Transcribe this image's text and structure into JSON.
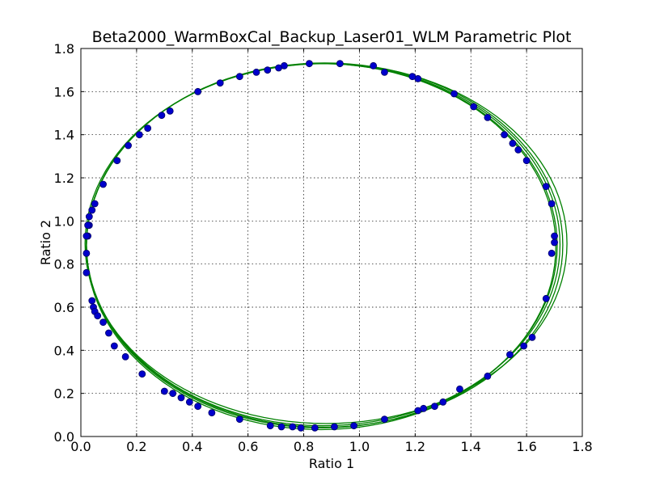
{
  "chart_data": {
    "type": "line",
    "title": "Beta2000_WarmBoxCal_Backup_Laser01_WLM Parametric Plot",
    "xlabel": "Ratio 1",
    "ylabel": "Ratio 2",
    "xlim": [
      0.0,
      1.8
    ],
    "ylim": [
      0.0,
      1.8
    ],
    "xticks": [
      "0.0",
      "0.2",
      "0.4",
      "0.6",
      "0.8",
      "1.0",
      "1.2",
      "1.4",
      "1.6",
      "1.8"
    ],
    "yticks": [
      "0.0",
      "0.2",
      "0.4",
      "0.6",
      "0.8",
      "1.0",
      "1.2",
      "1.4",
      "1.6",
      "1.8"
    ],
    "grid": true,
    "curve": {
      "center": [
        0.865,
        0.885
      ],
      "radius_x": 0.845,
      "radius_y": 0.845,
      "loops": [
        {
          "dcx": 0.0,
          "dcy": 0.0,
          "drx": 0.0,
          "dry": 0.0
        },
        {
          "dcx": 0.005,
          "dcy": 0.005,
          "drx": 0.005,
          "dry": -0.005
        },
        {
          "dcx": 0.015,
          "dcy": 0.01,
          "drx": 0.02,
          "dry": -0.01
        },
        {
          "dcx": -0.003,
          "dcy": -0.004,
          "drx": -0.002,
          "dry": 0.004
        },
        {
          "dcx": 0.01,
          "dcy": 0.003,
          "drx": 0.01,
          "dry": 0.0
        }
      ],
      "color": "#008000"
    },
    "points": {
      "color": "#0000cc",
      "edge_color": "#000066",
      "x": [
        0.02,
        0.02,
        0.025,
        0.03,
        0.04,
        0.045,
        0.05,
        0.06,
        0.08,
        0.1,
        0.12,
        0.16,
        0.22,
        0.3,
        0.33,
        0.36,
        0.39,
        0.42,
        0.47,
        0.57,
        0.68,
        0.72,
        0.76,
        0.79,
        0.84,
        0.91,
        0.98,
        1.09,
        1.21,
        1.23,
        1.27,
        1.3,
        1.36,
        1.46,
        1.54,
        1.59,
        1.62,
        1.67,
        1.69,
        1.7,
        1.7,
        1.69,
        1.67,
        1.6,
        1.57,
        1.55,
        1.52,
        1.46,
        1.41,
        1.34,
        1.21,
        1.19,
        1.09,
        1.05,
        0.93,
        0.82,
        0.73,
        0.71,
        0.67,
        0.63,
        0.57,
        0.5,
        0.42,
        0.32,
        0.29,
        0.24,
        0.21,
        0.17,
        0.13,
        0.08,
        0.05,
        0.04,
        0.03,
        0.025,
        0.02
      ],
      "y": [
        0.85,
        0.76,
        0.93,
        0.98,
        0.63,
        0.6,
        0.58,
        0.56,
        0.53,
        0.48,
        0.42,
        0.37,
        0.29,
        0.21,
        0.2,
        0.18,
        0.16,
        0.14,
        0.11,
        0.08,
        0.05,
        0.045,
        0.045,
        0.04,
        0.04,
        0.045,
        0.05,
        0.08,
        0.12,
        0.13,
        0.14,
        0.16,
        0.22,
        0.28,
        0.38,
        0.42,
        0.46,
        0.64,
        0.85,
        0.9,
        0.93,
        1.08,
        1.16,
        1.28,
        1.33,
        1.36,
        1.4,
        1.48,
        1.53,
        1.59,
        1.66,
        1.67,
        1.69,
        1.72,
        1.73,
        1.73,
        1.72,
        1.71,
        1.7,
        1.69,
        1.67,
        1.64,
        1.6,
        1.51,
        1.49,
        1.43,
        1.4,
        1.35,
        1.28,
        1.17,
        1.08,
        1.05,
        1.02,
        0.98,
        0.93
      ]
    }
  }
}
